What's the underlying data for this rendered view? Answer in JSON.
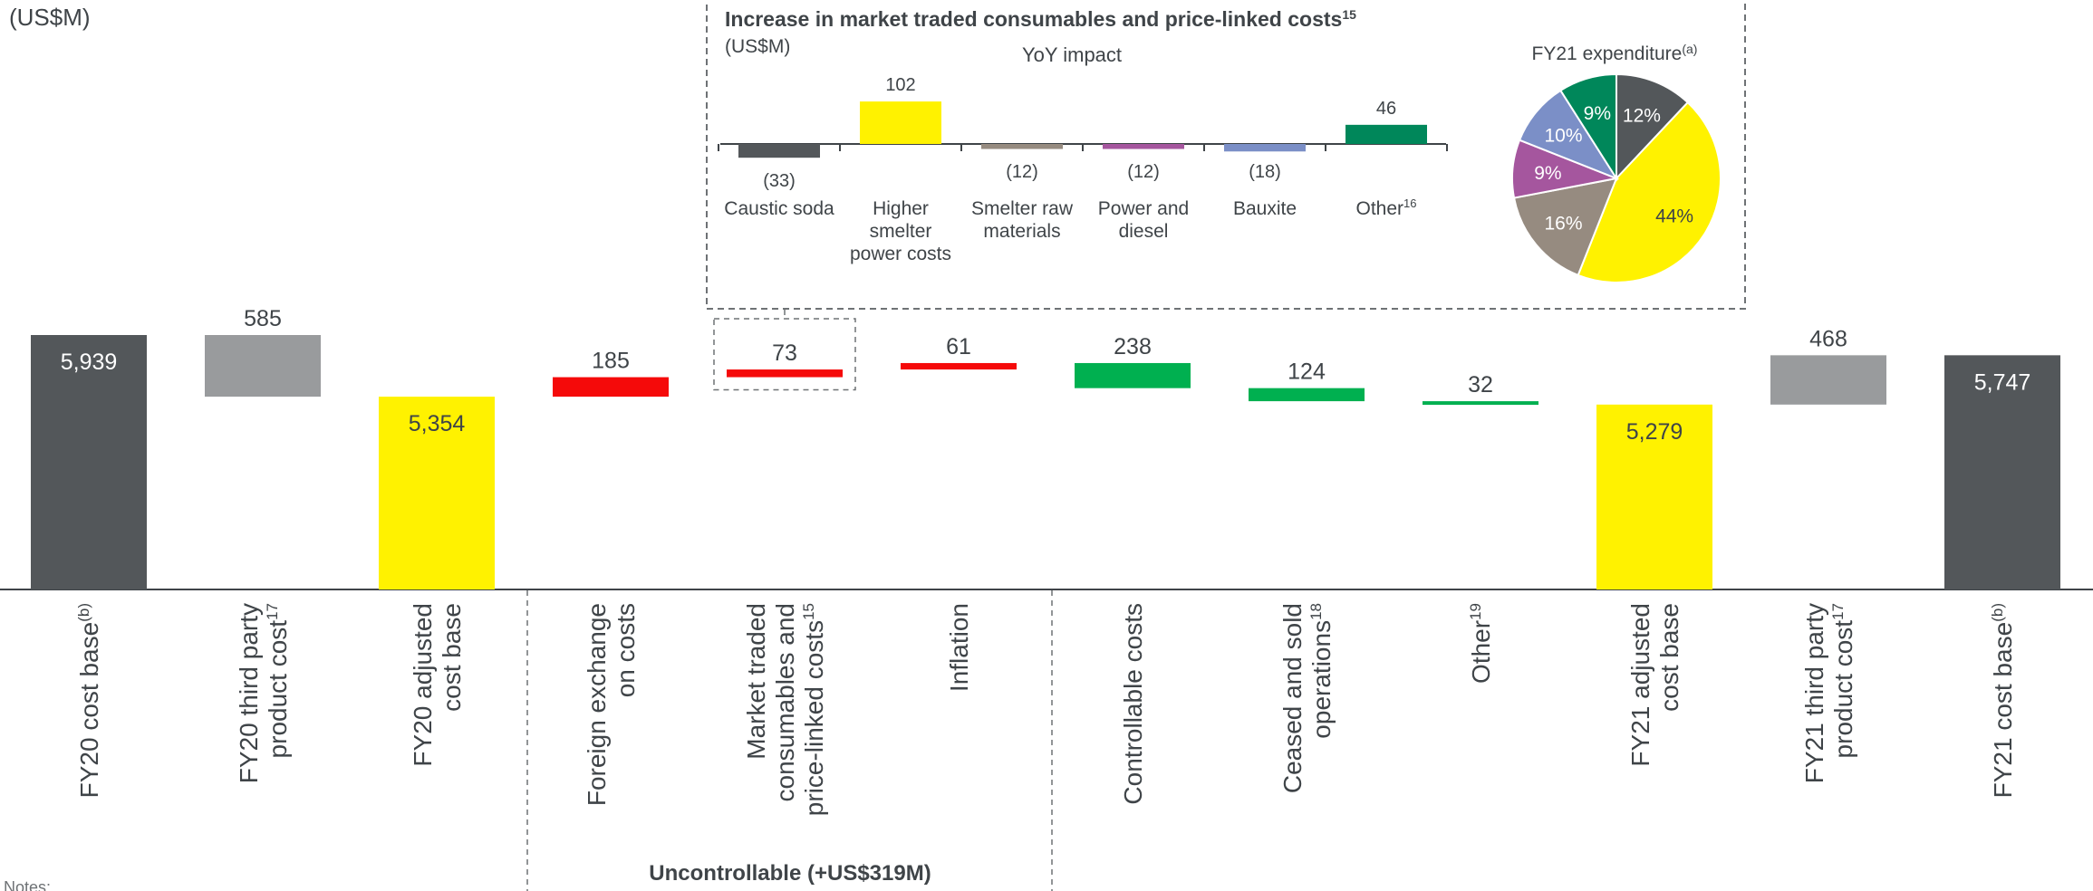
{
  "unit_label": "(US$M)",
  "group_label": "Uncontrollable (+US$319M)",
  "notes_label": "Notes:",
  "colors": {
    "dark": "#53575a",
    "grey": "#999b9d",
    "yellow": "#fff200",
    "red": "#f50a0a",
    "green": "#00b050",
    "axis": "#3f4448"
  },
  "chart_data": [
    {
      "type": "bar",
      "subtype": "waterfall",
      "ylabel": "(US$M)",
      "categories": [
        {
          "label": [
            "FY20 cost base"
          ],
          "sup": "(b)"
        },
        {
          "label": [
            "FY20  third party",
            "product cost"
          ],
          "sup": "17"
        },
        {
          "label": [
            "FY20 adjusted",
            "cost base"
          ],
          "sup": ""
        },
        {
          "label": [
            "Foreign exchange",
            "on costs"
          ],
          "sup": ""
        },
        {
          "label": [
            "Market traded",
            "consumables and",
            "price-linked costs"
          ],
          "sup": "15"
        },
        {
          "label": [
            "Inflation"
          ],
          "sup": ""
        },
        {
          "label": [
            "Controllable costs"
          ],
          "sup": ""
        },
        {
          "label": [
            "Ceased and sold",
            "operations"
          ],
          "sup": "18"
        },
        {
          "label": [
            "Other"
          ],
          "sup": "19"
        },
        {
          "label": [
            "FY21 adjusted",
            "cost base"
          ],
          "sup": ""
        },
        {
          "label": [
            "FY21 third party",
            "product cost"
          ],
          "sup": "17"
        },
        {
          "label": [
            "FY21 cost base"
          ],
          "sup": "(b)"
        }
      ],
      "bars": [
        {
          "start": 0,
          "end": 5939,
          "value_label": "5,939",
          "color": "dark",
          "label_inside": true
        },
        {
          "start": 5354,
          "end": 5939,
          "value_label": "585",
          "color": "grey",
          "label_inside": false
        },
        {
          "start": 0,
          "end": 5354,
          "value_label": "5,354",
          "color": "yellow",
          "label_inside": true
        },
        {
          "start": 5354,
          "end": 5539,
          "value_label": "185",
          "color": "red",
          "label_inside": false
        },
        {
          "start": 5539,
          "end": 5612,
          "value_label": "73",
          "color": "red",
          "label_inside": false,
          "highlight_box": true
        },
        {
          "start": 5612,
          "end": 5673,
          "value_label": "61",
          "color": "red",
          "label_inside": false
        },
        {
          "start": 5435,
          "end": 5673,
          "value_label": "238",
          "color": "green",
          "label_inside": false
        },
        {
          "start": 5311,
          "end": 5435,
          "value_label": "124",
          "color": "green",
          "label_inside": false
        },
        {
          "start": 5279,
          "end": 5311,
          "value_label": "32",
          "color": "green",
          "label_inside": false
        },
        {
          "start": 0,
          "end": 5279,
          "value_label": "5,279",
          "color": "yellow",
          "label_inside": true
        },
        {
          "start": 5279,
          "end": 5747,
          "value_label": "468",
          "color": "grey",
          "label_inside": false
        },
        {
          "start": 0,
          "end": 5747,
          "value_label": "5,747",
          "color": "dark",
          "label_inside": true
        }
      ]
    },
    {
      "type": "bar",
      "title": "Increase in market traded consumables and price-linked costs",
      "title_sup": "15",
      "subtitle": "(US$M)",
      "xlabel": "YoY impact",
      "categories": [
        {
          "label": [
            "Caustic soda"
          ],
          "sup": ""
        },
        {
          "label": [
            "Higher",
            "smelter",
            "power costs"
          ],
          "sup": ""
        },
        {
          "label": [
            "Smelter raw",
            "materials"
          ],
          "sup": ""
        },
        {
          "label": [
            "Power and",
            "diesel"
          ],
          "sup": ""
        },
        {
          "label": [
            "Bauxite"
          ],
          "sup": ""
        },
        {
          "label": [
            "Other"
          ],
          "sup": "16"
        }
      ],
      "values": [
        -33,
        102,
        -12,
        -12,
        -18,
        46
      ],
      "value_labels": [
        "(33)",
        "102",
        "(12)",
        "(12)",
        "(18)",
        "46"
      ],
      "bar_colors": [
        "#53575a",
        "#fff200",
        "#968b80",
        "#a5569e",
        "#7b8fc7",
        "#00875a"
      ]
    },
    {
      "type": "pie",
      "title": "FY21 expenditure",
      "title_sup": "(a)",
      "slices": [
        {
          "value": 12,
          "label": "12%",
          "color": "#53575a"
        },
        {
          "value": 44,
          "label": "44%",
          "color": "#fff200"
        },
        {
          "value": 16,
          "label": "16%",
          "color": "#968b80"
        },
        {
          "value": 9,
          "label": "9%",
          "color": "#a5569e"
        },
        {
          "value": 10,
          "label": "10%",
          "color": "#7b8fc7"
        },
        {
          "value": 9,
          "label": "9%",
          "color": "#00875a"
        }
      ]
    }
  ]
}
